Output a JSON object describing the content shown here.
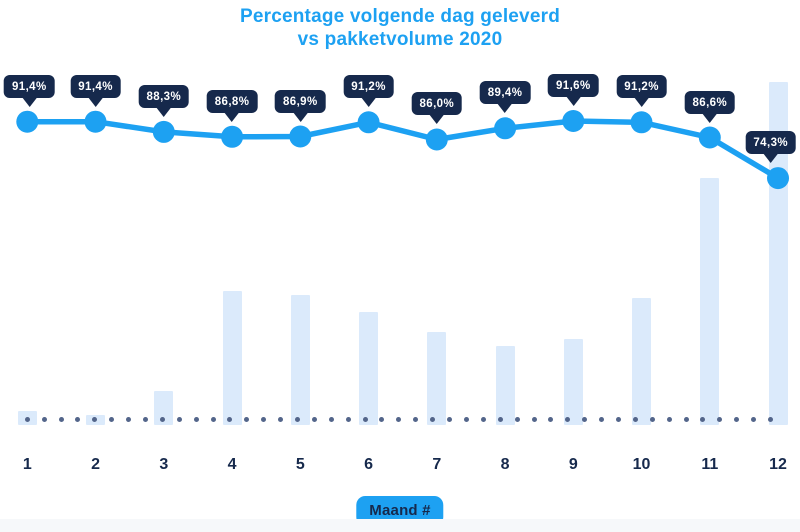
{
  "title": {
    "line1": "Percentage volgende dag geleverd",
    "line2": "vs pakketvolume 2020"
  },
  "x_axis": {
    "label": "Maand #"
  },
  "chart_data": {
    "type": "line",
    "title": "Percentage volgende dag geleverd vs pakketvolume 2020",
    "xlabel": "Maand #",
    "ylabel": "",
    "grid": false,
    "legend_position": "none",
    "categories": [
      "1",
      "2",
      "3",
      "4",
      "5",
      "6",
      "7",
      "8",
      "9",
      "10",
      "11",
      "12"
    ],
    "series": [
      {
        "name": "Percentage volgende dag geleverd",
        "type": "line",
        "unit": "%",
        "values": [
          91.4,
          91.4,
          88.3,
          86.8,
          86.9,
          91.2,
          86.0,
          89.4,
          91.6,
          91.2,
          86.6,
          74.3
        ],
        "labels": [
          "91,4%",
          "91,4%",
          "88,3%",
          "86,8%",
          "86,9%",
          "91,2%",
          "86,0%",
          "89,4%",
          "91,6%",
          "91,2%",
          "86,6%",
          "74,3%"
        ]
      },
      {
        "name": "Pakketvolume 2020",
        "type": "bar",
        "unit": "relative index 0-100 (estimated from bar heights, no value axis shown)",
        "values": [
          4,
          3,
          10,
          39,
          38,
          33,
          27,
          23,
          25,
          37,
          72,
          100
        ]
      }
    ]
  },
  "colors": {
    "accent_blue": "#1da1f2",
    "tooltip_navy": "#16294c",
    "bar_fill": "#dbeafb",
    "baseline_dot": "#53658a",
    "tooltip_text": "#ffffff",
    "background": "#ffffff",
    "footer_strip": "#f6f8fa"
  }
}
